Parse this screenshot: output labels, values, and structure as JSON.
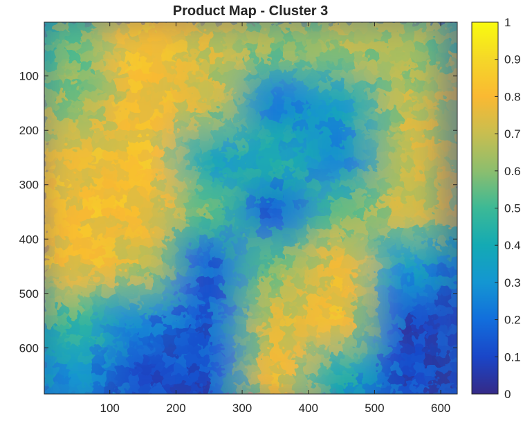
{
  "chart_data": {
    "type": "heatmap",
    "title": "Product Map - Cluster 3",
    "xlabel": "",
    "ylabel": "",
    "xlim": [
      1,
      625
    ],
    "ylim": [
      1,
      685
    ],
    "y_direction": "reversed",
    "x_ticks": [
      100,
      200,
      300,
      400,
      500,
      600
    ],
    "y_ticks": [
      100,
      200,
      300,
      400,
      500,
      600
    ],
    "colorbar": {
      "colormap": "parula",
      "clim": [
        0,
        1
      ],
      "ticks": [
        0,
        0.1,
        0.2,
        0.3,
        0.4,
        0.5,
        0.6,
        0.7,
        0.8,
        0.9,
        1
      ],
      "tick_labels": [
        "0",
        "0.1",
        "0.2",
        "0.3",
        "0.4",
        "0.5",
        "0.6",
        "0.7",
        "0.8",
        "0.9",
        "1"
      ]
    },
    "grid_columns": [
      50,
      150,
      250,
      350,
      450,
      550
    ],
    "grid_rows": [
      50,
      150,
      250,
      350,
      450,
      550,
      650
    ],
    "values": [
      [
        0.55,
        0.82,
        0.72,
        0.6,
        0.65,
        0.62
      ],
      [
        0.62,
        0.8,
        0.7,
        0.22,
        0.35,
        0.68
      ],
      [
        0.76,
        0.82,
        0.35,
        0.45,
        0.25,
        0.72
      ],
      [
        0.8,
        0.8,
        0.55,
        0.15,
        0.55,
        0.7
      ],
      [
        0.8,
        0.72,
        0.15,
        0.6,
        0.78,
        0.3
      ],
      [
        0.5,
        0.25,
        0.15,
        0.72,
        0.78,
        0.1
      ],
      [
        0.3,
        0.1,
        0.12,
        0.78,
        0.4,
        0.12
      ]
    ]
  }
}
